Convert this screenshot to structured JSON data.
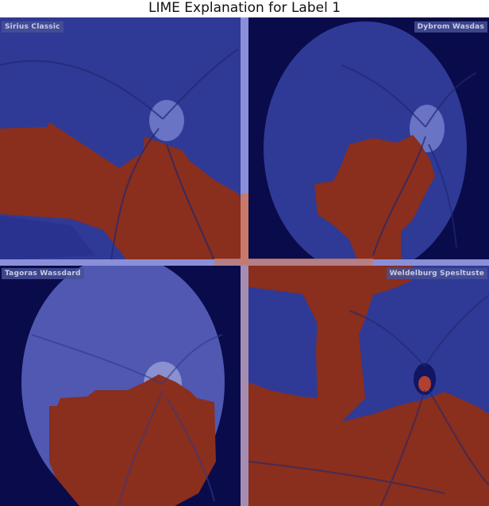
{
  "title": "LIME Explanation for Label 1",
  "quadrants": [
    {
      "label": "Sirius Classic"
    },
    {
      "label": "Dybrom Wasdas"
    },
    {
      "label": "Tagoras Wassdard"
    },
    {
      "label": "Weldelburg Spesltuste"
    }
  ],
  "colors": {
    "background_dark": "#000040",
    "positive_region": "#8a2e1d",
    "negative_region": "#2b3390",
    "divider": "#8a90d8",
    "title_text": "#111111"
  }
}
